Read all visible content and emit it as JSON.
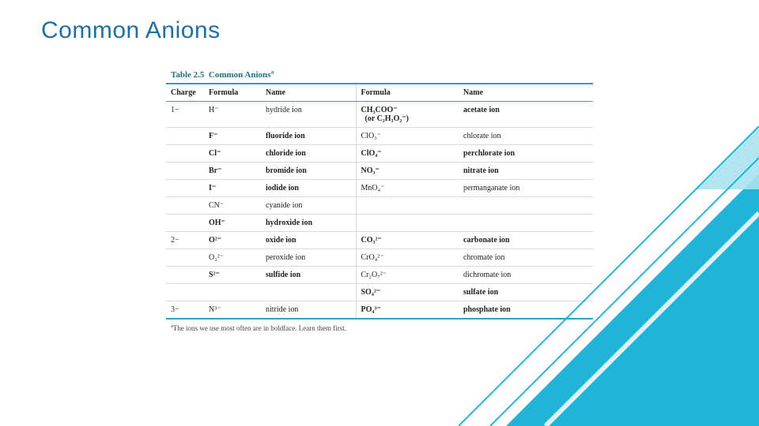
{
  "title": {
    "text": "Common Anions",
    "color": "#1d6fa5"
  },
  "table": {
    "caption_number": "Table 2.5",
    "caption_title": "Common Anions",
    "caption_sup": "a",
    "headers": [
      "Charge",
      "Formula",
      "Name",
      "Formula",
      "Name"
    ],
    "footnote_marker": "a",
    "footnote_text": "The ions we use most often are in boldface. Learn them first.",
    "border_color": "#2aa3c4",
    "row_border": "#d9d9d9"
  },
  "rows": [
    {
      "group": true,
      "charge": "1−",
      "f1": "H⁻",
      "n1": "hydride ion",
      "n1b": false,
      "f2": "CH₃COO⁻<br>&nbsp;&nbsp;(or C₂H₃O₂⁻)",
      "n2": "acetate ion",
      "n2b": true
    },
    {
      "group": false,
      "charge": "",
      "f1": "F⁻",
      "n1": "fluoride ion",
      "n1b": true,
      "f2": "ClO₃⁻",
      "n2": "chlorate ion",
      "n2b": false
    },
    {
      "group": false,
      "charge": "",
      "f1": "Cl⁻",
      "n1": "chloride ion",
      "n1b": true,
      "f2": "ClO₄⁻",
      "n2": "perchlorate ion",
      "n2b": true
    },
    {
      "group": false,
      "charge": "",
      "f1": "Br⁻",
      "n1": "bromide ion",
      "n1b": true,
      "f2": "NO₃⁻",
      "n2": "nitrate ion",
      "n2b": true
    },
    {
      "group": false,
      "charge": "",
      "f1": "I⁻",
      "n1": "iodide ion",
      "n1b": true,
      "f2": "MnO₄⁻",
      "n2": "permanganate ion",
      "n2b": false
    },
    {
      "group": false,
      "charge": "",
      "f1": "CN⁻",
      "n1": "cyanide ion",
      "n1b": false,
      "f2": "",
      "n2": "",
      "n2b": false
    },
    {
      "group": false,
      "charge": "",
      "f1": "OH⁻",
      "n1": "hydroxide ion",
      "n1b": true,
      "f2": "",
      "n2": "",
      "n2b": false
    },
    {
      "group": true,
      "charge": "2−",
      "f1": "O²⁻",
      "n1": "oxide ion",
      "n1b": true,
      "f2": "CO₃²⁻",
      "n2": "carbonate ion",
      "n2b": true
    },
    {
      "group": false,
      "charge": "",
      "f1": "O₂²⁻",
      "n1": "peroxide ion",
      "n1b": false,
      "f2": "CrO₄²⁻",
      "n2": "chromate ion",
      "n2b": false
    },
    {
      "group": false,
      "charge": "",
      "f1": "S²⁻",
      "n1": "sulfide ion",
      "n1b": true,
      "f2": "Cr₂O₇²⁻",
      "n2": "dichromate ion",
      "n2b": false
    },
    {
      "group": false,
      "charge": "",
      "f1": "",
      "n1": "",
      "n1b": false,
      "f2": "SO₄²⁻",
      "n2": "sulfate ion",
      "n2b": true
    },
    {
      "group": true,
      "charge": "3−",
      "f1": "N³⁻",
      "n1": "nitride ion",
      "n1b": false,
      "f2": "PO₄³⁻",
      "n2": "phosphate ion",
      "n2b": true
    }
  ],
  "decor": {
    "fill": "#1fb4d8",
    "light": "#a9e3f0"
  }
}
